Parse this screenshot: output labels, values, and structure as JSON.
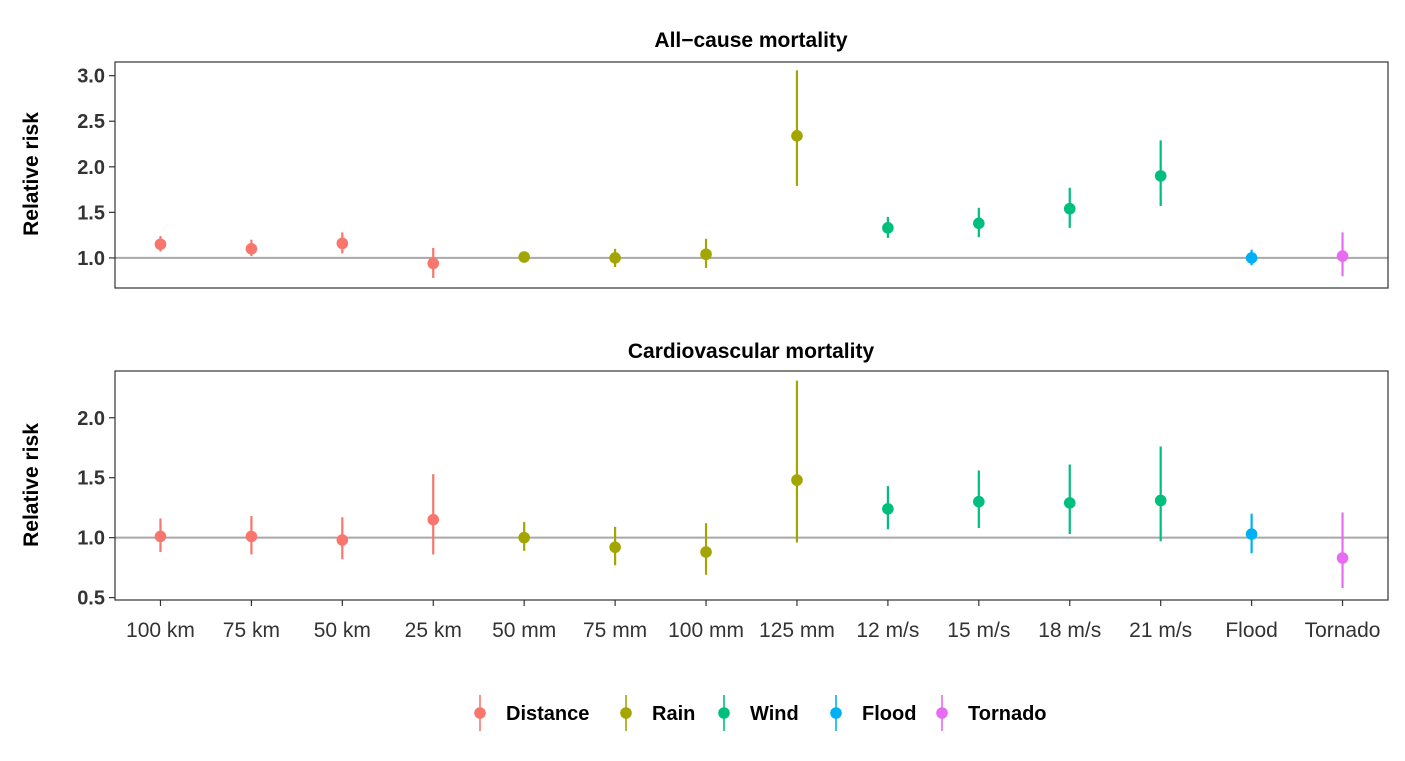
{
  "chart_data": {
    "type": "scatter",
    "subtype": "point-range",
    "categories": [
      "100 km",
      "75 km",
      "50 km",
      "25 km",
      "50 mm",
      "75 mm",
      "100 mm",
      "125 mm",
      "12 m/s",
      "15 m/s",
      "18 m/s",
      "21 m/s",
      "Flood",
      "Tornado"
    ],
    "legend": {
      "placement": "bottom",
      "items": [
        {
          "group": "distance",
          "label": "Distance",
          "color": "#F8766D"
        },
        {
          "group": "rain",
          "label": "Rain",
          "color": "#A3A500"
        },
        {
          "group": "wind",
          "label": "Wind",
          "color": "#00BF7D"
        },
        {
          "group": "flood",
          "label": "Flood",
          "color": "#00B0F6"
        },
        {
          "group": "tornado",
          "label": "Tornado",
          "color": "#E76BF3"
        }
      ]
    },
    "panels": [
      {
        "title": "All−cause mortality",
        "ylabel": "Relative risk",
        "ylim": [
          0.67,
          3.15
        ],
        "yticks": [
          1.0,
          1.5,
          2.0,
          2.5,
          3.0
        ],
        "ytick_labels": [
          "1.0",
          "1.5",
          "2.0",
          "2.5",
          "3.0"
        ],
        "reference_line": 1.0,
        "points": [
          {
            "category": "100 km",
            "group": "distance",
            "value": 1.15,
            "low": 1.07,
            "high": 1.24
          },
          {
            "category": "75 km",
            "group": "distance",
            "value": 1.1,
            "low": 1.02,
            "high": 1.2
          },
          {
            "category": "50 km",
            "group": "distance",
            "value": 1.16,
            "low": 1.05,
            "high": 1.28
          },
          {
            "category": "25 km",
            "group": "distance",
            "value": 0.94,
            "low": 0.78,
            "high": 1.11
          },
          {
            "category": "50 mm",
            "group": "rain",
            "value": 1.01,
            "low": 0.96,
            "high": 1.06
          },
          {
            "category": "75 mm",
            "group": "rain",
            "value": 1.0,
            "low": 0.9,
            "high": 1.1
          },
          {
            "category": "100 mm",
            "group": "rain",
            "value": 1.04,
            "low": 0.89,
            "high": 1.21
          },
          {
            "category": "125 mm",
            "group": "rain",
            "value": 2.34,
            "low": 1.79,
            "high": 3.06
          },
          {
            "category": "12 m/s",
            "group": "wind",
            "value": 1.33,
            "low": 1.22,
            "high": 1.45
          },
          {
            "category": "15 m/s",
            "group": "wind",
            "value": 1.38,
            "low": 1.23,
            "high": 1.55
          },
          {
            "category": "18 m/s",
            "group": "wind",
            "value": 1.54,
            "low": 1.33,
            "high": 1.77
          },
          {
            "category": "21 m/s",
            "group": "wind",
            "value": 1.9,
            "low": 1.57,
            "high": 2.29
          },
          {
            "category": "Flood",
            "group": "flood",
            "value": 1.0,
            "low": 0.92,
            "high": 1.09
          },
          {
            "category": "Tornado",
            "group": "tornado",
            "value": 1.02,
            "low": 0.8,
            "high": 1.28
          }
        ]
      },
      {
        "title": "Cardiovascular mortality",
        "ylabel": "Relative risk",
        "ylim": [
          0.48,
          2.39
        ],
        "yticks": [
          0.5,
          1.0,
          1.5,
          2.0
        ],
        "ytick_labels": [
          "0.5",
          "1.0",
          "1.5",
          "2.0"
        ],
        "reference_line": 1.0,
        "points": [
          {
            "category": "100 km",
            "group": "distance",
            "value": 1.01,
            "low": 0.88,
            "high": 1.16
          },
          {
            "category": "75 km",
            "group": "distance",
            "value": 1.01,
            "low": 0.86,
            "high": 1.18
          },
          {
            "category": "50 km",
            "group": "distance",
            "value": 0.98,
            "low": 0.82,
            "high": 1.17
          },
          {
            "category": "25 km",
            "group": "distance",
            "value": 1.15,
            "low": 0.86,
            "high": 1.53
          },
          {
            "category": "50 mm",
            "group": "rain",
            "value": 1.0,
            "low": 0.89,
            "high": 1.13
          },
          {
            "category": "75 mm",
            "group": "rain",
            "value": 0.92,
            "low": 0.77,
            "high": 1.09
          },
          {
            "category": "100 mm",
            "group": "rain",
            "value": 0.88,
            "low": 0.69,
            "high": 1.12
          },
          {
            "category": "125 mm",
            "group": "rain",
            "value": 1.48,
            "low": 0.96,
            "high": 2.31
          },
          {
            "category": "12 m/s",
            "group": "wind",
            "value": 1.24,
            "low": 1.07,
            "high": 1.43
          },
          {
            "category": "15 m/s",
            "group": "wind",
            "value": 1.3,
            "low": 1.08,
            "high": 1.56
          },
          {
            "category": "18 m/s",
            "group": "wind",
            "value": 1.29,
            "low": 1.03,
            "high": 1.61
          },
          {
            "category": "21 m/s",
            "group": "wind",
            "value": 1.31,
            "low": 0.97,
            "high": 1.76
          },
          {
            "category": "Flood",
            "group": "flood",
            "value": 1.03,
            "low": 0.87,
            "high": 1.2
          },
          {
            "category": "Tornado",
            "group": "tornado",
            "value": 0.83,
            "low": 0.58,
            "high": 1.21
          }
        ]
      }
    ]
  }
}
